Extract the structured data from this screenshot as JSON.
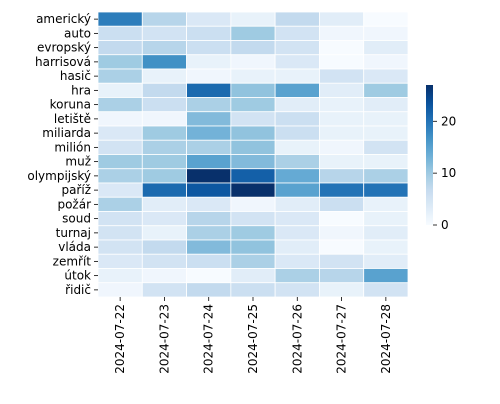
{
  "chart_data": {
    "type": "heatmap",
    "rows": [
      "americký",
      "auto",
      "evropský",
      "harrisová",
      "hasič",
      "hra",
      "koruna",
      "letiště",
      "miliarda",
      "milión",
      "muž",
      "olympijský",
      "paříž",
      "požár",
      "soud",
      "turnaj",
      "vláda",
      "zemřít",
      "útok",
      "řidič"
    ],
    "columns": [
      "2024-07-22",
      "2024-07-23",
      "2024-07-24",
      "2024-07-25",
      "2024-07-26",
      "2024-07-27",
      "2024-07-28"
    ],
    "values": [
      [
        19,
        8,
        4,
        2,
        7,
        3,
        0
      ],
      [
        6,
        5,
        6,
        10,
        5,
        1,
        1
      ],
      [
        7,
        8,
        6,
        7,
        5,
        0,
        3
      ],
      [
        10,
        17,
        2,
        1,
        4,
        0,
        1
      ],
      [
        9,
        2,
        1,
        2,
        2,
        5,
        4
      ],
      [
        2,
        7,
        21,
        11,
        15,
        3,
        10
      ],
      [
        9,
        6,
        9,
        10,
        3,
        2,
        3
      ],
      [
        1,
        1,
        12,
        5,
        6,
        2,
        2
      ],
      [
        4,
        10,
        13,
        11,
        6,
        2,
        2
      ],
      [
        5,
        9,
        9,
        11,
        2,
        1,
        5
      ],
      [
        10,
        10,
        15,
        12,
        9,
        2,
        2
      ],
      [
        9,
        10,
        27,
        22,
        14,
        8,
        9
      ],
      [
        4,
        21,
        23,
        27,
        15,
        20,
        20
      ],
      [
        9,
        3,
        4,
        1,
        3,
        6,
        2
      ],
      [
        5,
        4,
        8,
        5,
        4,
        0,
        2
      ],
      [
        5,
        2,
        9,
        10,
        4,
        1,
        3
      ],
      [
        5,
        7,
        12,
        11,
        3,
        0,
        2
      ],
      [
        4,
        5,
        6,
        9,
        4,
        5,
        3
      ],
      [
        2,
        1,
        0,
        3,
        9,
        8,
        15
      ],
      [
        1,
        5,
        7,
        6,
        5,
        2,
        5
      ]
    ],
    "vmin": 0,
    "vmax": 27,
    "colormap": "Blues",
    "colorbar_ticks": [
      0,
      10,
      20
    ],
    "cell_border_color": "#ffffff"
  }
}
